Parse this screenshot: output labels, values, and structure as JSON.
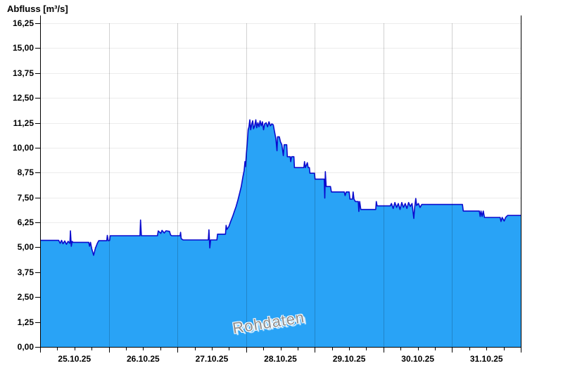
{
  "chart": {
    "title": "Abfluss [m³/s]",
    "watermark": "Rohdaten"
  },
  "chart_data": {
    "type": "area",
    "title": "Abfluss [m³/s]",
    "ylabel": "Abfluss [m³/s]",
    "unit": "m³/s",
    "watermark": "Rohdaten",
    "grid": true,
    "legend": "none",
    "ylim": [
      0,
      16.25
    ],
    "y_tick_step": 1.25,
    "y_tick_labels": [
      "0,00",
      "1,25",
      "2,50",
      "3,75",
      "5,00",
      "6,25",
      "7,50",
      "8,75",
      "10,00",
      "11,25",
      "12,50",
      "13,75",
      "15,00",
      "16,25"
    ],
    "x_categories": [
      "25.10.25",
      "26.10.25",
      "27.10.25",
      "28.10.25",
      "29.10.25",
      "30.10.25",
      "31.10.25"
    ],
    "x_range_hours": [
      0,
      168
    ],
    "x_minor_tick_hours": 6,
    "colors": {
      "fill": "#29a3f6",
      "line": "#0b0bce",
      "grid": "#ececec",
      "day_line": "rgba(0,0,0,0.18)",
      "axis": "#000000",
      "watermark_text": "#8d8d8d"
    },
    "series": [
      {
        "name": "Rohdaten",
        "points": [
          [
            0,
            5.35
          ],
          [
            6.5,
            5.35
          ],
          [
            7,
            5.2
          ],
          [
            7.5,
            5.35
          ],
          [
            8,
            5.18
          ],
          [
            8.6,
            5.32
          ],
          [
            9.2,
            5.15
          ],
          [
            9.8,
            5.3
          ],
          [
            10.4,
            5.2
          ],
          [
            10.6,
            5.83
          ],
          [
            10.9,
            5.05
          ],
          [
            11.2,
            5.3
          ],
          [
            11.5,
            5.25
          ],
          [
            17,
            5.25
          ],
          [
            17.3,
            5.05
          ],
          [
            17.6,
            5.25
          ],
          [
            18,
            4.95
          ],
          [
            18.7,
            4.6
          ],
          [
            19.3,
            4.95
          ],
          [
            20,
            5.2
          ],
          [
            20.5,
            5.33
          ],
          [
            23.3,
            5.33
          ],
          [
            23.5,
            5.6
          ],
          [
            23.8,
            5.33
          ],
          [
            24.3,
            5.35
          ],
          [
            24.5,
            5.58
          ],
          [
            34.9,
            5.58
          ],
          [
            35.1,
            6.37
          ],
          [
            35.4,
            5.58
          ],
          [
            41,
            5.58
          ],
          [
            41.3,
            5.82
          ],
          [
            42.2,
            5.7
          ],
          [
            42.6,
            5.85
          ],
          [
            43.4,
            5.72
          ],
          [
            44,
            5.83
          ],
          [
            45.2,
            5.8
          ],
          [
            45.6,
            5.62
          ],
          [
            46,
            5.58
          ],
          [
            48.9,
            5.58
          ],
          [
            49.1,
            5.75
          ],
          [
            49.3,
            5.45
          ],
          [
            49.6,
            5.4
          ],
          [
            50,
            5.37
          ],
          [
            58.8,
            5.37
          ],
          [
            59,
            5.88
          ],
          [
            59.3,
            4.97
          ],
          [
            59.6,
            5.37
          ],
          [
            61.8,
            5.37
          ],
          [
            62,
            5.66
          ],
          [
            64.8,
            5.66
          ],
          [
            65,
            6.1
          ],
          [
            65.3,
            5.9
          ],
          [
            66,
            6.05
          ],
          [
            66.6,
            6.3
          ],
          [
            67.3,
            6.55
          ],
          [
            67.9,
            6.8
          ],
          [
            68.5,
            7.05
          ],
          [
            69.1,
            7.35
          ],
          [
            69.7,
            7.7
          ],
          [
            70.3,
            8.05
          ],
          [
            70.9,
            8.55
          ],
          [
            71.3,
            8.85
          ],
          [
            71.6,
            9.3
          ],
          [
            71.8,
            9.05
          ],
          [
            72.1,
            9.7
          ],
          [
            72.4,
            10.2
          ],
          [
            72.7,
            10.9
          ],
          [
            73,
            11.05
          ],
          [
            73.3,
            11.4
          ],
          [
            73.6,
            10.9
          ],
          [
            74,
            11.2
          ],
          [
            74.3,
            11.35
          ],
          [
            74.6,
            10.95
          ],
          [
            75,
            11.1
          ],
          [
            75.4,
            11.4
          ],
          [
            75.7,
            11.0
          ],
          [
            76.1,
            11.25
          ],
          [
            76.5,
            11.05
          ],
          [
            76.9,
            11.35
          ],
          [
            77.3,
            11.1
          ],
          [
            77.7,
            11.3
          ],
          [
            78.1,
            10.9
          ],
          [
            78.5,
            11.2
          ],
          [
            79,
            11.25
          ],
          [
            79.5,
            11.05
          ],
          [
            80,
            11.3
          ],
          [
            80.5,
            11.1
          ],
          [
            81,
            11.2
          ],
          [
            81.5,
            11.15
          ],
          [
            82,
            10.75
          ],
          [
            82.4,
            10.45
          ],
          [
            82.8,
            9.85
          ],
          [
            83,
            10.55
          ],
          [
            83.6,
            10.55
          ],
          [
            84,
            10.3
          ],
          [
            84.5,
            10.15
          ],
          [
            85,
            9.6
          ],
          [
            85.3,
            10.15
          ],
          [
            86.2,
            10.15
          ],
          [
            86.4,
            9.55
          ],
          [
            87.4,
            9.55
          ],
          [
            87.6,
            9.3
          ],
          [
            87.9,
            9.55
          ],
          [
            88.7,
            9.55
          ],
          [
            88.9,
            9.0
          ],
          [
            92.2,
            9.0
          ],
          [
            92.4,
            9.3
          ],
          [
            92.7,
            9.0
          ],
          [
            93.4,
            9.25
          ],
          [
            93.7,
            9.0
          ],
          [
            94.1,
            9.0
          ],
          [
            94.3,
            8.72
          ],
          [
            95.9,
            8.72
          ],
          [
            96.1,
            8.42
          ],
          [
            99.3,
            8.42
          ],
          [
            99.5,
            7.47
          ],
          [
            99.7,
            8.8
          ],
          [
            100,
            8.05
          ],
          [
            101.5,
            8.05
          ],
          [
            101.8,
            7.78
          ],
          [
            106.3,
            7.78
          ],
          [
            106.6,
            7.6
          ],
          [
            107,
            7.78
          ],
          [
            108,
            7.78
          ],
          [
            108.3,
            7.42
          ],
          [
            109.2,
            7.42
          ],
          [
            109.4,
            7.78
          ],
          [
            109.7,
            7.42
          ],
          [
            110.2,
            7.3
          ],
          [
            111.2,
            7.3
          ],
          [
            111.4,
            6.8
          ],
          [
            111.7,
            7.3
          ],
          [
            112.1,
            6.9
          ],
          [
            117.3,
            6.9
          ],
          [
            117.5,
            7.3
          ],
          [
            117.8,
            7.08
          ],
          [
            122.4,
            7.08
          ],
          [
            122.8,
            7.2
          ],
          [
            123.4,
            6.95
          ],
          [
            124,
            7.25
          ],
          [
            124.6,
            7.0
          ],
          [
            125.2,
            7.2
          ],
          [
            125.8,
            6.9
          ],
          [
            126.4,
            7.25
          ],
          [
            127,
            7.0
          ],
          [
            127.6,
            7.2
          ],
          [
            128.2,
            6.95
          ],
          [
            128.8,
            7.25
          ],
          [
            129.4,
            7.05
          ],
          [
            130,
            7.2
          ],
          [
            130.6,
            6.45
          ],
          [
            130.9,
            7.0
          ],
          [
            131.3,
            7.45
          ],
          [
            131.6,
            7.1
          ],
          [
            132.2,
            7.2
          ],
          [
            132.8,
            7.0
          ],
          [
            133.4,
            7.15
          ],
          [
            144,
            7.15
          ],
          [
            147.6,
            7.15
          ],
          [
            147.9,
            6.82
          ],
          [
            153.5,
            6.82
          ],
          [
            153.8,
            6.55
          ],
          [
            154.1,
            6.82
          ],
          [
            154.5,
            6.55
          ],
          [
            154.9,
            6.82
          ],
          [
            155.3,
            6.5
          ],
          [
            160.8,
            6.5
          ],
          [
            161.1,
            6.3
          ],
          [
            161.5,
            6.5
          ],
          [
            162.2,
            6.32
          ],
          [
            162.7,
            6.5
          ],
          [
            163.4,
            6.6
          ],
          [
            168,
            6.6
          ]
        ]
      }
    ]
  }
}
